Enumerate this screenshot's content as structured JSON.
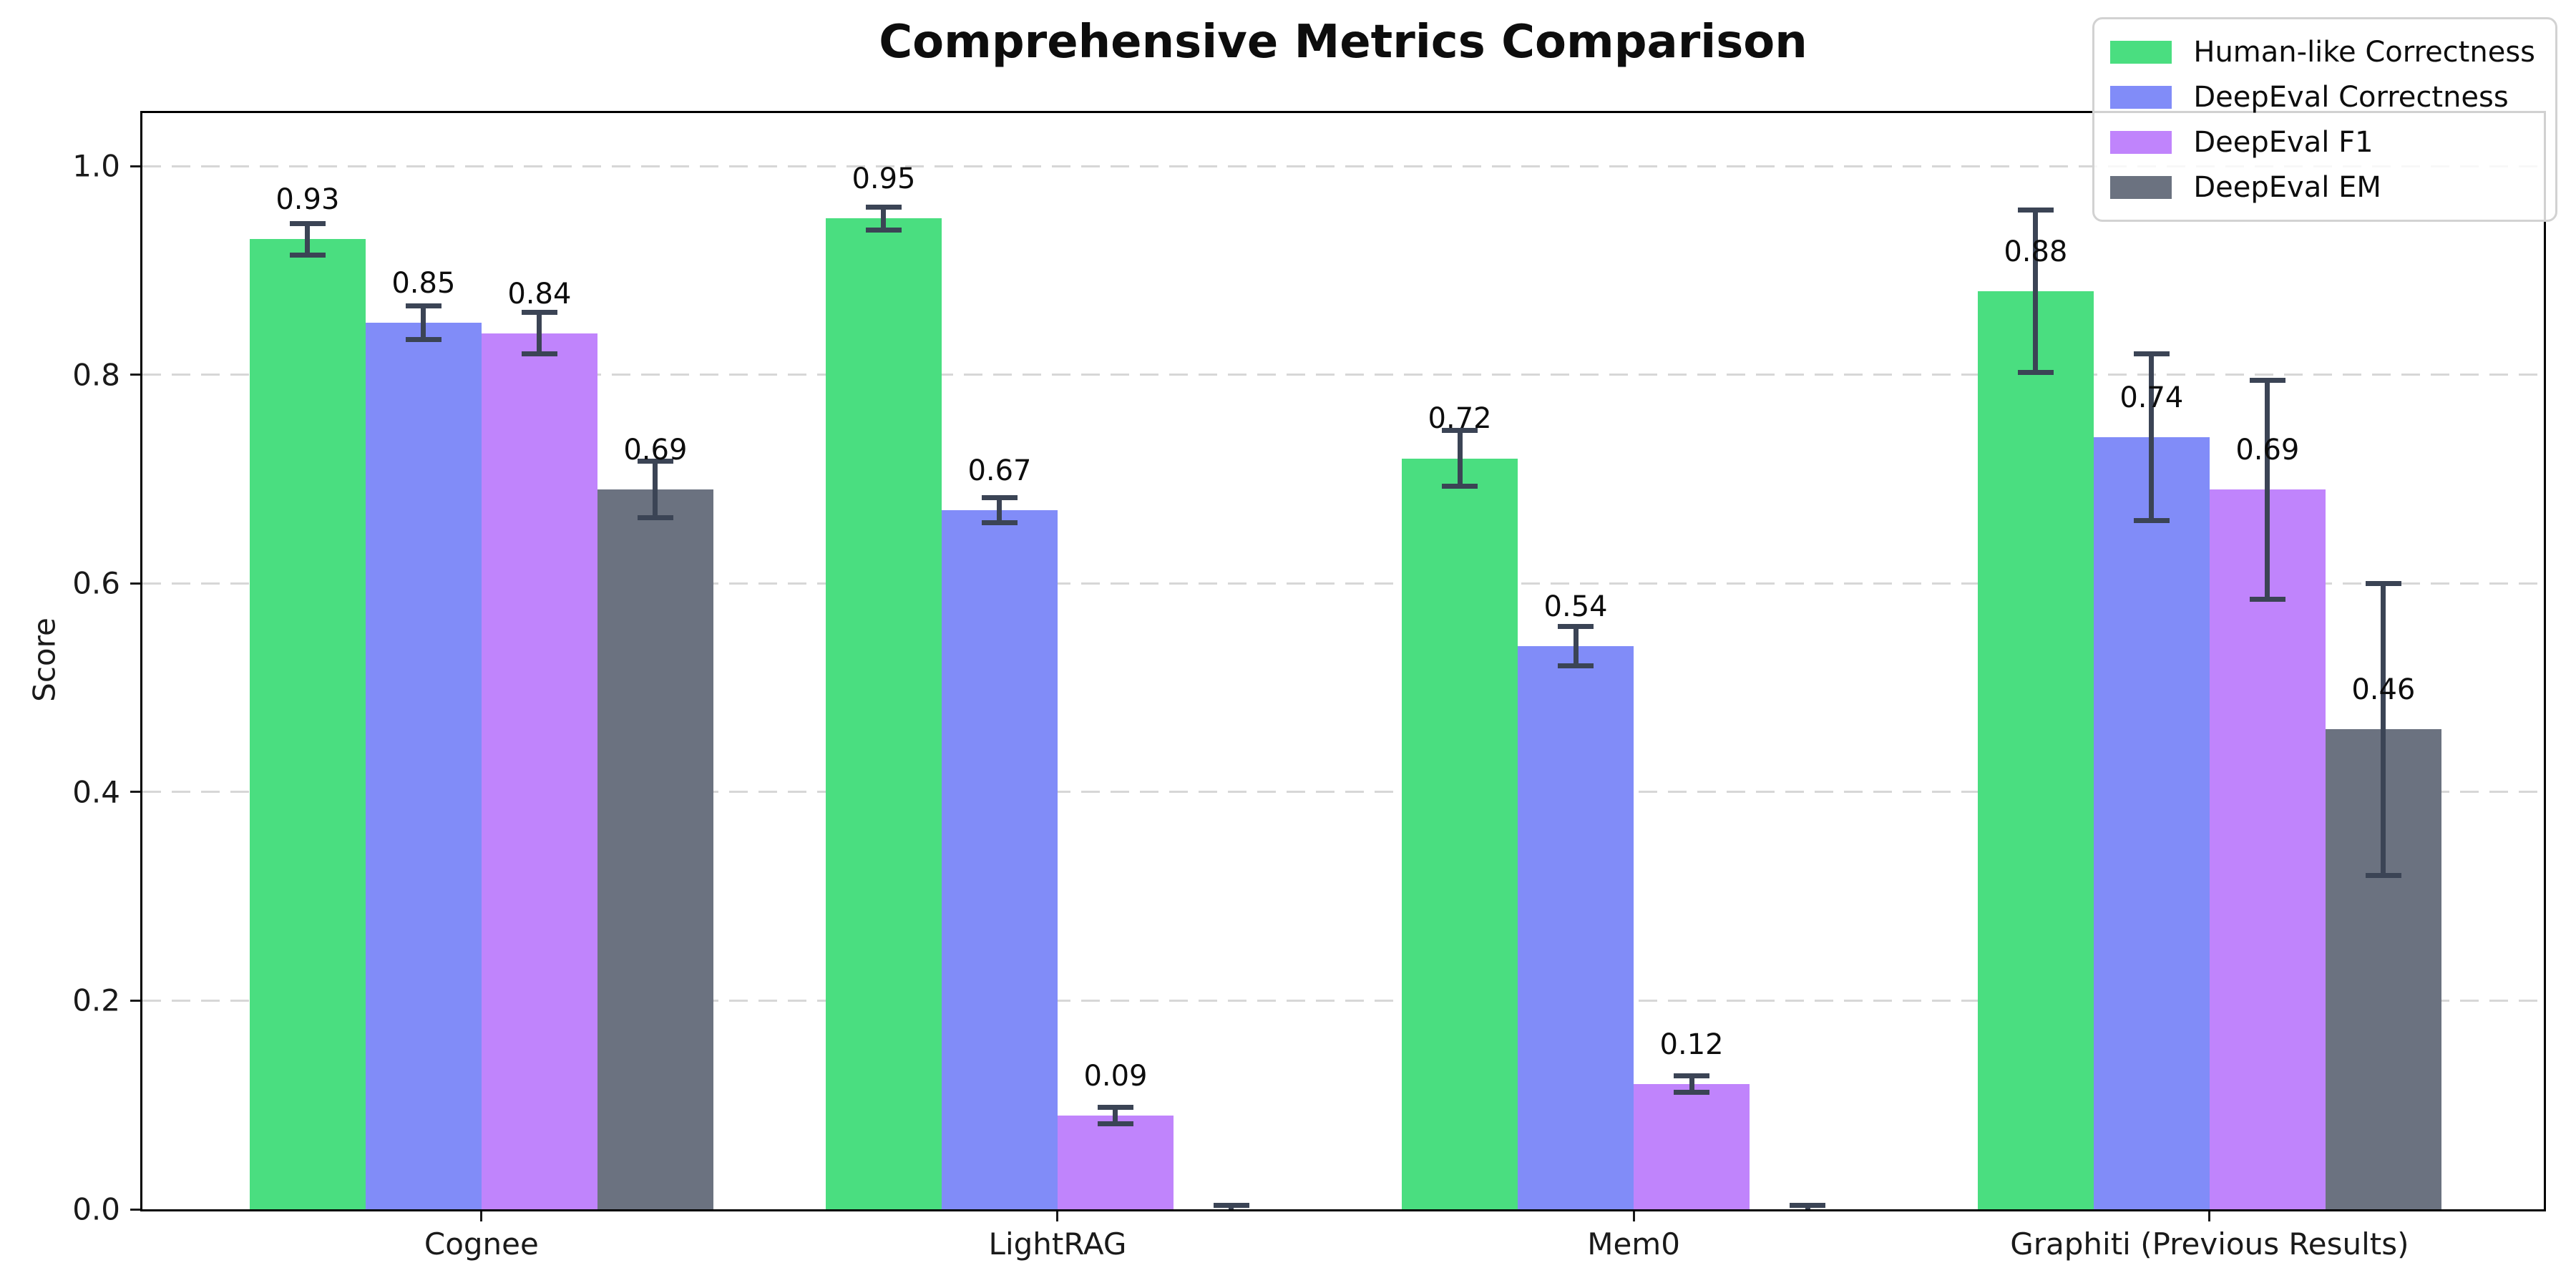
{
  "chart_data": {
    "type": "bar",
    "title": "Comprehensive Metrics Comparison",
    "ylabel": "Score",
    "xlabel": "",
    "categories": [
      "Cognee",
      "LightRAG",
      "Mem0",
      "Graphiti (Previous Results)"
    ],
    "series": [
      {
        "name": "Human-like Correctness",
        "color": "#4ade80",
        "values": [
          0.93,
          0.95,
          0.72,
          0.88
        ],
        "errors": [
          0.015,
          0.011,
          0.027,
          0.078
        ],
        "labels": [
          "0.93",
          "0.95",
          "0.72",
          "0.88"
        ]
      },
      {
        "name": "DeepEval Correctness",
        "color": "#818cf8",
        "values": [
          0.85,
          0.67,
          0.54,
          0.74
        ],
        "errors": [
          0.016,
          0.012,
          0.019,
          0.08
        ],
        "labels": [
          "0.85",
          "0.67",
          "0.54",
          "0.74"
        ]
      },
      {
        "name": "DeepEval F1",
        "color": "#c084fc",
        "values": [
          0.84,
          0.09,
          0.12,
          0.69
        ],
        "errors": [
          0.02,
          0.008,
          0.008,
          0.105
        ],
        "labels": [
          "0.84",
          "0.09",
          "0.12",
          "0.69"
        ]
      },
      {
        "name": "DeepEval EM",
        "color": "#6b7280",
        "values": [
          0.69,
          0.0,
          0.0,
          0.46
        ],
        "errors": [
          0.027,
          0.004,
          0.004,
          0.14
        ],
        "labels": [
          "0.69",
          "",
          "",
          "0.46"
        ]
      }
    ],
    "ylim": [
      0,
      1.051
    ],
    "yticks": [
      0.0,
      0.2,
      0.4,
      0.6,
      0.8,
      1.0
    ],
    "ytick_labels": [
      "0.0",
      "0.2",
      "0.4",
      "0.6",
      "0.8",
      "1.0"
    ],
    "grid": "horizontal-dashed",
    "legend_position": "upper right",
    "error_bar_color": "#3b4455"
  }
}
